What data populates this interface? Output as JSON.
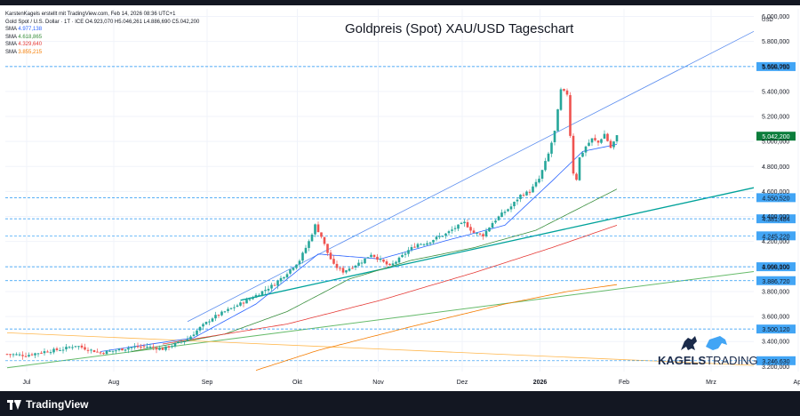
{
  "header": {
    "attribution": "KarstenKagels erstellt mit TradingView.com, Feb 14, 2026 08:36 UTC+1",
    "symbol": "Gold Spot / U.S. Dollar · 1T · ICE  O4.923,070  H5.046,261  L4.886,690  C5.042,200",
    "sma": [
      {
        "label": "SMA",
        "value": "4.977,138",
        "color": "#2962ff"
      },
      {
        "label": "SMA",
        "value": "4.618,865",
        "color": "#388e3c"
      },
      {
        "label": "SMA",
        "value": "4.329,640",
        "color": "#e53935"
      },
      {
        "label": "SMA",
        "value": "3.855,215",
        "color": "#f57c00"
      }
    ]
  },
  "title": "Goldpreis (Spot) XAU/USD Tageschart",
  "branding": {
    "tv_name": "TradingView",
    "kagels_bold": "KAGELS",
    "kagels_light": "TRADING",
    "kagels_color": "#1a2a4a"
  },
  "chart_data": {
    "type": "candlestick",
    "currency": "USD",
    "ylim": [
      3160,
      6060
    ],
    "x_labels": [
      "Jul",
      "Aug",
      "Sep",
      "Okt",
      "Nov",
      "Dez",
      "2026",
      "Feb",
      "Mrz",
      "Apr"
    ],
    "y_ticks": [
      "3.200,000",
      "3.400,000",
      "3.600,000",
      "3.800,000",
      "4.000,000",
      "4.200,000",
      "4.400,000",
      "4.600,000",
      "4.800,000",
      "5.000,000",
      "5.200,000",
      "5.400,000",
      "5.600,000",
      "5.800,000",
      "6.000,000"
    ],
    "y_tick_values": [
      3200,
      3400,
      3600,
      3800,
      4000,
      4200,
      4400,
      4600,
      4800,
      5000,
      5200,
      5400,
      5600,
      5800,
      6000
    ],
    "level_labels": [
      {
        "value": 5598.75,
        "text": "5.598,750"
      },
      {
        "value": 4550.52,
        "text": "4.550,520"
      },
      {
        "value": 4381.484,
        "text": "4.381,484"
      },
      {
        "value": 4245.22,
        "text": "4.245,220"
      },
      {
        "value": 3998.1,
        "text": "3.998,100"
      },
      {
        "value": 3886.72,
        "text": "3.886,720"
      },
      {
        "value": 3500.12,
        "text": "3.500,120"
      },
      {
        "value": 3246.63,
        "text": "3.246,630"
      }
    ],
    "last_price": {
      "value": 5042.2,
      "text": "5.042,200"
    },
    "colors": {
      "up": "#26a69a",
      "down": "#ef5350",
      "level": "#2196f3",
      "label_bg": "#42a5f5",
      "last_bg": "#0b7d3b",
      "trend_teal": "#00a29a",
      "trend_blue": "#5b8def",
      "trend_green": "#66bb6a",
      "trend_orange": "#ffb74d"
    },
    "close_anchors": [
      [
        0,
        3300
      ],
      [
        6,
        3290
      ],
      [
        12,
        3320
      ],
      [
        18,
        3340
      ],
      [
        22,
        3370
      ],
      [
        25,
        3345
      ],
      [
        30,
        3310
      ],
      [
        35,
        3330
      ],
      [
        40,
        3355
      ],
      [
        45,
        3360
      ],
      [
        50,
        3340
      ],
      [
        54,
        3380
      ],
      [
        58,
        3420
      ],
      [
        62,
        3510
      ],
      [
        66,
        3590
      ],
      [
        70,
        3640
      ],
      [
        74,
        3690
      ],
      [
        78,
        3740
      ],
      [
        82,
        3800
      ],
      [
        86,
        3860
      ],
      [
        90,
        3950
      ],
      [
        94,
        4050
      ],
      [
        97,
        4200
      ],
      [
        99,
        4330
      ],
      [
        101,
        4240
      ],
      [
        103,
        4110
      ],
      [
        105,
        4010
      ],
      [
        108,
        3960
      ],
      [
        111,
        4000
      ],
      [
        114,
        4040
      ],
      [
        117,
        4100
      ],
      [
        120,
        4050
      ],
      [
        123,
        4000
      ],
      [
        126,
        4060
      ],
      [
        129,
        4130
      ],
      [
        132,
        4180
      ],
      [
        135,
        4190
      ],
      [
        138,
        4230
      ],
      [
        141,
        4260
      ],
      [
        144,
        4310
      ],
      [
        147,
        4350
      ],
      [
        150,
        4270
      ],
      [
        153,
        4250
      ],
      [
        156,
        4350
      ],
      [
        159,
        4420
      ],
      [
        162,
        4480
      ],
      [
        165,
        4570
      ],
      [
        168,
        4600
      ],
      [
        171,
        4700
      ],
      [
        174,
        4900
      ],
      [
        176,
        5080
      ],
      [
        178,
        5410
      ],
      [
        180,
        5380
      ],
      [
        181,
        5050
      ],
      [
        182,
        4750
      ],
      [
        183,
        4700
      ],
      [
        184,
        4870
      ],
      [
        186,
        4960
      ],
      [
        188,
        5020
      ],
      [
        190,
        4990
      ],
      [
        192,
        5060
      ],
      [
        194,
        4950
      ],
      [
        196,
        5042
      ]
    ],
    "sma_anchors": {
      "blue": [
        [
          30,
          3320
        ],
        [
          60,
          3430
        ],
        [
          80,
          3700
        ],
        [
          100,
          4100
        ],
        [
          120,
          4060
        ],
        [
          140,
          4200
        ],
        [
          160,
          4330
        ],
        [
          175,
          4680
        ],
        [
          185,
          4920
        ],
        [
          196,
          4977
        ]
      ],
      "green": [
        [
          40,
          3320
        ],
        [
          70,
          3460
        ],
        [
          90,
          3640
        ],
        [
          110,
          3900
        ],
        [
          130,
          4050
        ],
        [
          150,
          4150
        ],
        [
          170,
          4290
        ],
        [
          185,
          4480
        ],
        [
          196,
          4619
        ]
      ],
      "red": [
        [
          50,
          3380
        ],
        [
          90,
          3540
        ],
        [
          120,
          3730
        ],
        [
          150,
          3950
        ],
        [
          175,
          4150
        ],
        [
          196,
          4330
        ]
      ],
      "orange": [
        [
          80,
          3170
        ],
        [
          100,
          3330
        ],
        [
          130,
          3520
        ],
        [
          160,
          3700
        ],
        [
          180,
          3800
        ],
        [
          196,
          3855
        ]
      ]
    }
  }
}
